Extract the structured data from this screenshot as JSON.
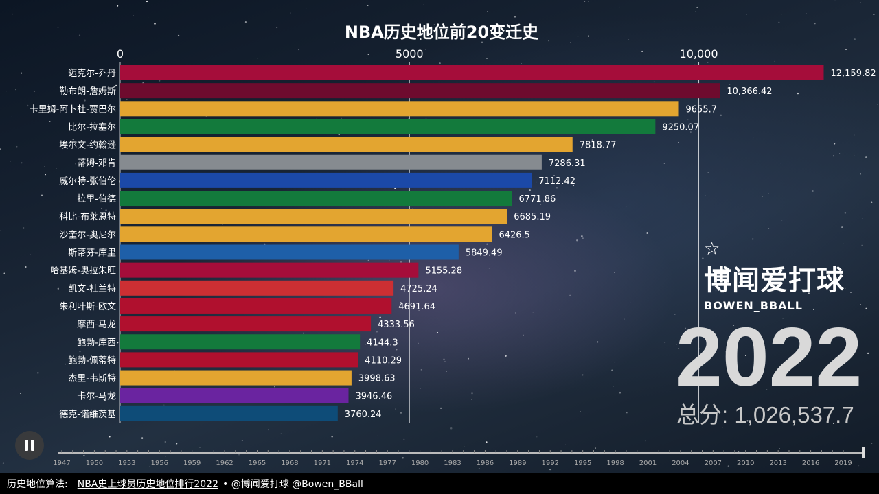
{
  "chart_data": {
    "type": "bar",
    "orientation": "horizontal",
    "title": "NBA历史地位前20变迁史",
    "xlim": [
      0,
      12700
    ],
    "x_ticks": [
      0,
      5000,
      10000
    ],
    "x_tick_labels": [
      "0",
      "5000",
      "10,000"
    ],
    "categories": [
      "迈克尔-乔丹",
      "勒布朗-詹姆斯",
      "卡里姆-阿卜杜-贾巴尔",
      "比尔-拉塞尔",
      "埃尔文-约翰逊",
      "蒂姆-邓肯",
      "威尔特-张伯伦",
      "拉里-伯德",
      "科比-布莱恩特",
      "沙奎尔-奥尼尔",
      "斯蒂芬-库里",
      "哈基姆-奥拉朱旺",
      "凯文-杜兰特",
      "朱利叶斯-欧文",
      "摩西-马龙",
      "鲍勃-库西",
      "鲍勃-佩蒂特",
      "杰里-韦斯特",
      "卡尔-马龙",
      "德克-诺维茨基"
    ],
    "values": [
      12159.82,
      10366.42,
      9655.7,
      9250.07,
      7818.77,
      7286.31,
      7112.42,
      6771.86,
      6685.19,
      6426.5,
      5849.49,
      5155.28,
      4725.24,
      4691.64,
      4333.56,
      4144.3,
      4110.29,
      3998.63,
      3946.46,
      3760.24
    ],
    "value_labels": [
      "12,159.82",
      "10,366.42",
      "9655.7",
      "9250.07",
      "7818.77",
      "7286.31",
      "7112.42",
      "6771.86",
      "6685.19",
      "6426.5",
      "5849.49",
      "5155.28",
      "4725.24",
      "4691.64",
      "4333.56",
      "4144.3",
      "4110.29",
      "3998.63",
      "3946.46",
      "3760.24"
    ],
    "colors": [
      "#a50d3a",
      "#6e0b2e",
      "#e3a530",
      "#137a3c",
      "#e3a530",
      "#868b90",
      "#1b49a8",
      "#137a3c",
      "#e3a530",
      "#e3a530",
      "#1e5fa8",
      "#a50d3a",
      "#cc2f33",
      "#b0102e",
      "#b0102e",
      "#137a3c",
      "#b0102e",
      "#e3a530",
      "#6a24a0",
      "#0e4c78"
    ]
  },
  "brand": {
    "star_icon": "star-icon",
    "name": "博闻爱打球",
    "sub": "BOWEN_BBALL"
  },
  "year": "2022",
  "total": "总分: 1,026,537.7",
  "timeline": {
    "years": [
      "1947",
      "1950",
      "1953",
      "1956",
      "1959",
      "1962",
      "1965",
      "1968",
      "1971",
      "1974",
      "1977",
      "1980",
      "1983",
      "1986",
      "1989",
      "1992",
      "1995",
      "1998",
      "2001",
      "2004",
      "2007",
      "2010",
      "2013",
      "2016",
      "2019"
    ]
  },
  "footer": {
    "prefix": "历史地位算法:",
    "link": "NBA史上球员历史地位排行2022",
    "suffix": "• @博闻爱打球 @Bowen_BBall"
  },
  "controls": {
    "pause_icon": "pause-icon"
  }
}
